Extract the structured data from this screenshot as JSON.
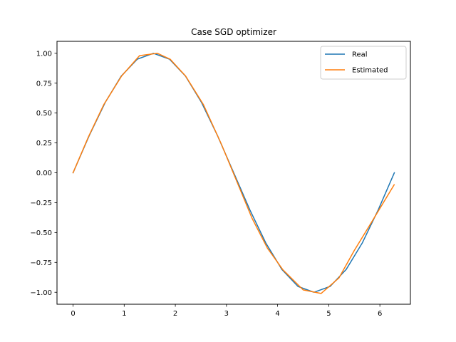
{
  "chart_data": {
    "type": "line",
    "title": "Case SGD optimizer",
    "xlabel": "",
    "ylabel": "",
    "xlim": [
      -0.314,
      6.597
    ],
    "ylim": [
      -1.1,
      1.1
    ],
    "xticks": [
      0,
      1,
      2,
      3,
      4,
      5,
      6
    ],
    "xtick_labels": [
      "0",
      "1",
      "2",
      "3",
      "4",
      "5",
      "6"
    ],
    "yticks": [
      -1.0,
      -0.75,
      -0.5,
      -0.25,
      0.0,
      0.25,
      0.5,
      0.75,
      1.0
    ],
    "ytick_labels": [
      "−1.00",
      "−0.75",
      "−0.50",
      "−0.25",
      "0.00",
      "0.25",
      "0.50",
      "0.75",
      "1.00"
    ],
    "grid": false,
    "legend_position": "top-right",
    "series": [
      {
        "name": "Real",
        "color": "#1f77b4",
        "x": [
          0.0,
          0.314,
          0.628,
          0.942,
          1.257,
          1.571,
          1.885,
          2.199,
          2.513,
          2.827,
          3.142,
          3.456,
          3.77,
          4.084,
          4.398,
          4.712,
          5.027,
          5.341,
          5.655,
          5.969,
          6.283
        ],
        "y": [
          0.0,
          0.309,
          0.588,
          0.809,
          0.951,
          1.0,
          0.951,
          0.809,
          0.588,
          0.309,
          0.0,
          -0.309,
          -0.588,
          -0.809,
          -0.951,
          -1.0,
          -0.951,
          -0.809,
          -0.588,
          -0.309,
          0.0
        ]
      },
      {
        "name": "Estimated",
        "color": "#ff7f0e",
        "x": [
          0.0,
          0.3,
          0.6,
          0.95,
          1.3,
          1.65,
          1.9,
          2.2,
          2.55,
          2.9,
          3.2,
          3.5,
          3.8,
          4.1,
          4.5,
          4.85,
          5.2,
          5.5,
          5.8,
          6.28
        ],
        "y": [
          0.0,
          0.3,
          0.57,
          0.81,
          0.98,
          1.0,
          0.95,
          0.81,
          0.57,
          0.24,
          -0.07,
          -0.38,
          -0.63,
          -0.81,
          -0.98,
          -1.01,
          -0.88,
          -0.65,
          -0.44,
          -0.1
        ]
      }
    ]
  }
}
